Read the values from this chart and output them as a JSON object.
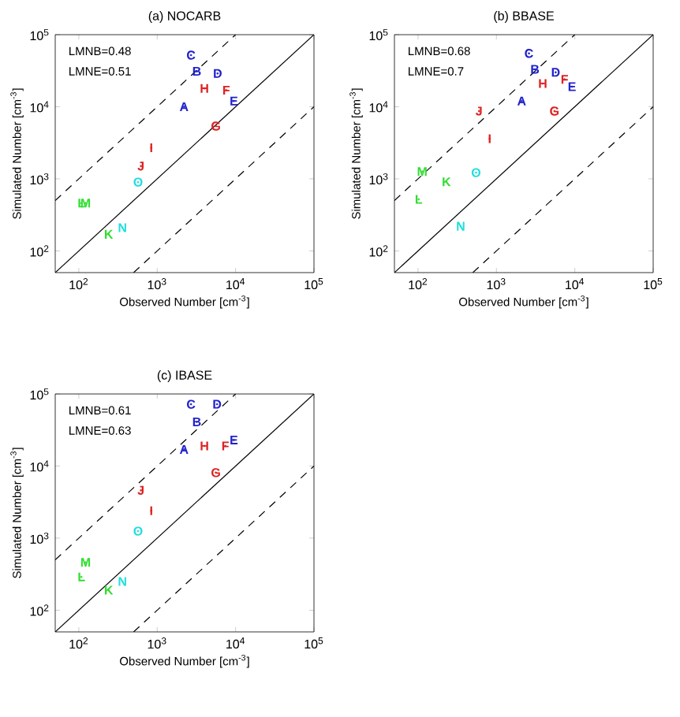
{
  "chart_data": [
    {
      "type": "scatter",
      "title": "(a) NOCARB",
      "xlabel": "Observed Number [cm$^{-3}$]",
      "ylabel": "Simulated Number [cm$^{-3}$]",
      "log": "xy",
      "xlim": [
        50,
        100000
      ],
      "ylim": [
        50,
        100000
      ],
      "xticks": [
        {
          "value": 100,
          "label": "10$^{2}$"
        },
        {
          "value": 1000,
          "label": "10$^{3}$"
        },
        {
          "value": 10000,
          "label": "10$^{4}$"
        },
        {
          "value": 100000,
          "label": "10$^{5}$"
        }
      ],
      "yticks": [
        {
          "value": 100,
          "label": "10$^{2}$"
        },
        {
          "value": 1000,
          "label": "10$^{3}$"
        },
        {
          "value": 10000,
          "label": "10$^{4}$"
        },
        {
          "value": 100000,
          "label": "10$^{5}$"
        }
      ],
      "annotations": [
        "LMNB=0.48",
        "LMNE=0.51"
      ],
      "series": [
        {
          "color": "#2222cc",
          "x": [
            2200,
            3200,
            2700,
            5900,
            9500
          ],
          "values": [
            10000,
            31000,
            52000,
            29000,
            12000
          ],
          "value_labels": [
            "A",
            "B",
            "C",
            "D",
            "E"
          ]
        },
        {
          "color": "#dd2222",
          "x": [
            7600,
            5600,
            4000,
            840,
            620
          ],
          "values": [
            17000,
            5400,
            18000,
            2700,
            1500
          ],
          "value_labels": [
            "F",
            "G",
            "H",
            "I",
            "J"
          ]
        },
        {
          "color": "#33dd33",
          "x": [
            240,
            108,
            122
          ],
          "values": [
            170,
            460,
            460
          ],
          "value_labels": [
            "K",
            "L",
            "M"
          ]
        },
        {
          "color": "#22dddd",
          "x": [
            360,
            570
          ],
          "values": [
            210,
            900
          ],
          "value_labels": [
            "N",
            "O"
          ]
        },
        {
          "type": "line",
          "color": "#000000",
          "line_style": "solid",
          "x": [
            50,
            100000
          ],
          "values": [
            50,
            100000
          ]
        },
        {
          "type": "line",
          "color": "#000000",
          "line_style": "dashed",
          "x": [
            50,
            10000
          ],
          "values": [
            500,
            100000
          ]
        },
        {
          "type": "line",
          "color": "#000000",
          "line_style": "dashed",
          "x": [
            500,
            100000
          ],
          "values": [
            50,
            10000
          ]
        }
      ]
    },
    {
      "type": "scatter",
      "title": "(b) BBASE",
      "xlabel": "Observed Number [cm$^{-3}$]",
      "ylabel": "Simulated Number [cm$^{-3}$]",
      "log": "xy",
      "xlim": [
        50,
        100000
      ],
      "ylim": [
        50,
        100000
      ],
      "xticks": [
        {
          "value": 100,
          "label": "10$^{2}$"
        },
        {
          "value": 1000,
          "label": "10$^{3}$"
        },
        {
          "value": 10000,
          "label": "10$^{4}$"
        },
        {
          "value": 100000,
          "label": "10$^{5}$"
        }
      ],
      "yticks": [
        {
          "value": 100,
          "label": "10$^{2}$"
        },
        {
          "value": 1000,
          "label": "10$^{3}$"
        },
        {
          "value": 10000,
          "label": "10$^{4}$"
        },
        {
          "value": 100000,
          "label": "10$^{5}$"
        }
      ],
      "annotations": [
        "LMNB=0.68",
        "LMNE=0.7"
      ],
      "series": [
        {
          "color": "#2222cc",
          "x": [
            2100,
            3100,
            2600,
            5700,
            9200
          ],
          "values": [
            12000,
            33000,
            55000,
            30000,
            19000
          ],
          "value_labels": [
            "A",
            "B",
            "C",
            "D",
            "E"
          ]
        },
        {
          "color": "#dd2222",
          "x": [
            7400,
            5500,
            3900,
            820,
            600
          ],
          "values": [
            24000,
            8700,
            21000,
            3600,
            8700
          ],
          "value_labels": [
            "F",
            "G",
            "H",
            "I",
            "J"
          ]
        },
        {
          "color": "#33dd33",
          "x": [
            230,
            102,
            113
          ],
          "values": [
            910,
            520,
            1260
          ],
          "value_labels": [
            "K",
            "L",
            "M"
          ]
        },
        {
          "color": "#22dddd",
          "x": [
            350,
            550
          ],
          "values": [
            220,
            1220
          ],
          "value_labels": [
            "N",
            "O"
          ]
        },
        {
          "type": "line",
          "color": "#000000",
          "line_style": "solid",
          "x": [
            50,
            100000
          ],
          "values": [
            50,
            100000
          ]
        },
        {
          "type": "line",
          "color": "#000000",
          "line_style": "dashed",
          "x": [
            50,
            10000
          ],
          "values": [
            500,
            100000
          ]
        },
        {
          "type": "line",
          "color": "#000000",
          "line_style": "dashed",
          "x": [
            500,
            100000
          ],
          "values": [
            50,
            10000
          ]
        }
      ]
    },
    {
      "type": "scatter",
      "title": "(c) IBASE",
      "xlabel": "Observed Number [cm$^{-3}$]",
      "ylabel": "Simulated Number [cm$^{-3}$]",
      "log": "xy",
      "xlim": [
        50,
        100000
      ],
      "ylim": [
        50,
        100000
      ],
      "xticks": [
        {
          "value": 100,
          "label": "10$^{2}$"
        },
        {
          "value": 1000,
          "label": "10$^{3}$"
        },
        {
          "value": 10000,
          "label": "10$^{4}$"
        },
        {
          "value": 100000,
          "label": "10$^{5}$"
        }
      ],
      "yticks": [
        {
          "value": 100,
          "label": "10$^{2}$"
        },
        {
          "value": 1000,
          "label": "10$^{3}$"
        },
        {
          "value": 10000,
          "label": "10$^{4}$"
        },
        {
          "value": 100000,
          "label": "10$^{5}$"
        }
      ],
      "annotations": [
        "LMNB=0.61",
        "LMNE=0.63"
      ],
      "series": [
        {
          "color": "#2222cc",
          "x": [
            2200,
            3200,
            2700,
            5800,
            9500
          ],
          "values": [
            17000,
            41000,
            72000,
            72000,
            23000
          ],
          "value_labels": [
            "A",
            "B",
            "C",
            "D",
            "E"
          ]
        },
        {
          "color": "#dd2222",
          "x": [
            7400,
            5600,
            4000,
            840,
            620
          ],
          "values": [
            19000,
            8100,
            19000,
            2400,
            4600
          ],
          "value_labels": [
            "F",
            "G",
            "H",
            "I",
            "J"
          ]
        },
        {
          "color": "#33dd33",
          "x": [
            240,
            108,
            122
          ],
          "values": [
            190,
            290,
            460
          ],
          "value_labels": [
            "K",
            "L",
            "M"
          ]
        },
        {
          "color": "#22dddd",
          "x": [
            360,
            570
          ],
          "values": [
            250,
            1250
          ],
          "value_labels": [
            "N",
            "O"
          ]
        },
        {
          "type": "line",
          "color": "#000000",
          "line_style": "solid",
          "x": [
            50,
            100000
          ],
          "values": [
            50,
            100000
          ]
        },
        {
          "type": "line",
          "color": "#000000",
          "line_style": "dashed",
          "x": [
            50,
            10000
          ],
          "values": [
            500,
            100000
          ]
        },
        {
          "type": "line",
          "color": "#000000",
          "line_style": "dashed",
          "x": [
            500,
            100000
          ],
          "values": [
            50,
            10000
          ]
        }
      ]
    }
  ]
}
